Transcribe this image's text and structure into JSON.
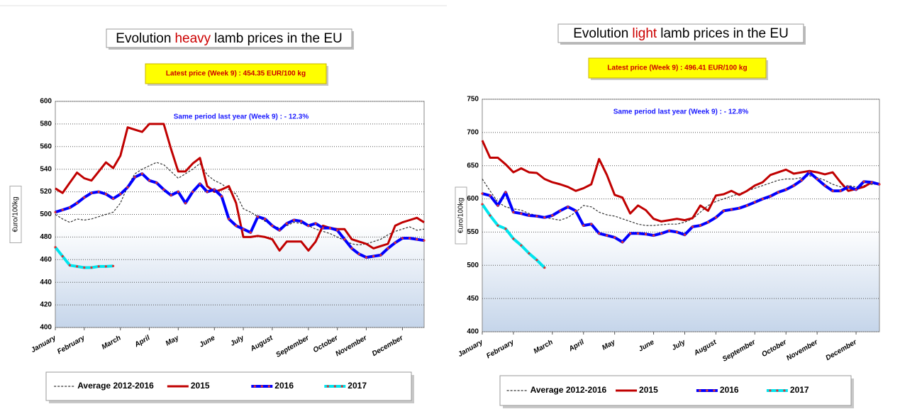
{
  "chart_data": [
    {
      "type": "line",
      "title": [
        "Evolution",
        "heavy",
        "lamb prices in the EU"
      ],
      "title_colors": [
        "#000000",
        "#cc0000",
        "#000000"
      ],
      "annotations": [
        "Latest price  (Week 9) : 454.35 EUR/100 kg",
        "Same period last year  (Week 9) : - 12.3%"
      ],
      "y_label": "€uro/100kg",
      "categories": [
        "January",
        null,
        null,
        null,
        "February",
        null,
        null,
        null,
        null,
        "March",
        null,
        null,
        null,
        "April",
        null,
        null,
        null,
        "May",
        null,
        null,
        null,
        null,
        "June",
        null,
        null,
        null,
        "July",
        null,
        null,
        null,
        "August",
        null,
        null,
        null,
        null,
        "September",
        null,
        null,
        null,
        "October",
        null,
        null,
        null,
        "November",
        null,
        null,
        null,
        null,
        "December",
        null,
        null,
        null
      ],
      "ylim": [
        400,
        600
      ],
      "yticks": [
        400,
        420,
        440,
        460,
        480,
        500,
        520,
        540,
        560,
        580,
        600
      ],
      "grid": true,
      "series": [
        {
          "name": "Average 2012-2016",
          "color": "#333333",
          "dash": true,
          "width": 1.2,
          "values": [
            500,
            496,
            493,
            496,
            495,
            496,
            498,
            500,
            502,
            510,
            525,
            536,
            540,
            543,
            546,
            544,
            538,
            532,
            536,
            540,
            545,
            535,
            530,
            527,
            522,
            518,
            505,
            502,
            498,
            494,
            490,
            488,
            490,
            493,
            492,
            490,
            487,
            485,
            483,
            480,
            477,
            474,
            473,
            474,
            476,
            478,
            482,
            485,
            487,
            489,
            486,
            487
          ]
        },
        {
          "name": "2015",
          "color": "#c00000",
          "width": 3,
          "values": [
            523,
            519,
            528,
            537,
            532,
            530,
            538,
            546,
            541,
            552,
            577,
            575,
            573,
            580,
            580,
            580,
            558,
            538,
            538,
            545,
            550,
            525,
            520,
            522,
            525,
            510,
            480,
            480,
            481,
            480,
            478,
            468,
            476,
            476,
            476,
            468,
            476,
            490,
            488,
            487,
            487,
            478,
            476,
            474,
            470,
            472,
            474,
            490,
            493,
            495,
            497,
            493
          ]
        },
        {
          "name": "2016",
          "color": "#0000ff",
          "width": 4,
          "marker_color": "#e03030",
          "values": [
            502,
            504,
            506,
            510,
            515,
            519,
            520,
            518,
            514,
            518,
            524,
            533,
            536,
            530,
            528,
            522,
            517,
            520,
            510,
            520,
            527,
            520,
            522,
            516,
            496,
            490,
            487,
            484,
            498,
            496,
            490,
            486,
            492,
            495,
            494,
            490,
            492,
            488,
            488,
            486,
            478,
            470,
            465,
            462,
            463,
            464,
            470,
            475,
            479,
            479,
            478,
            477
          ]
        },
        {
          "name": "2017",
          "color": "#00e5ee",
          "width": 4,
          "marker_color": "#e03030",
          "values": [
            471,
            463,
            455,
            454,
            453,
            453,
            454,
            454,
            454.35,
            null,
            null,
            null,
            null,
            null,
            null,
            null,
            null,
            null,
            null,
            null,
            null,
            null,
            null,
            null,
            null,
            null,
            null,
            null,
            null,
            null,
            null,
            null,
            null,
            null,
            null,
            null,
            null,
            null,
            null,
            null,
            null,
            null,
            null,
            null,
            null,
            null,
            null,
            null,
            null,
            null,
            null,
            null
          ]
        }
      ]
    },
    {
      "type": "line",
      "title": [
        "Evolution",
        "light",
        "lamb prices in the EU"
      ],
      "title_colors": [
        "#000000",
        "#cc0000",
        "#000000"
      ],
      "annotations": [
        "Latest price  (Week 9) : 496.41 EUR/100 kg",
        "Same period last year  (Week 9) : - 12.8%"
      ],
      "y_label": "€uro/100kg",
      "categories": [
        "January",
        null,
        null,
        null,
        "February",
        null,
        null,
        null,
        null,
        "March",
        null,
        null,
        null,
        "April",
        null,
        null,
        null,
        "May",
        null,
        null,
        null,
        null,
        "June",
        null,
        null,
        null,
        "July",
        null,
        null,
        null,
        "August",
        null,
        null,
        null,
        null,
        "September",
        null,
        null,
        null,
        "October",
        null,
        null,
        null,
        "November",
        null,
        null,
        null,
        null,
        "December",
        null,
        null,
        null
      ],
      "ylim": [
        400,
        750
      ],
      "yticks": [
        400,
        450,
        500,
        550,
        600,
        650,
        700,
        750
      ],
      "grid": true,
      "series": [
        {
          "name": "Average 2012-2016",
          "color": "#333333",
          "dash": true,
          "width": 1.2,
          "values": [
            630,
            612,
            595,
            588,
            585,
            583,
            578,
            575,
            572,
            570,
            568,
            572,
            580,
            590,
            588,
            580,
            576,
            574,
            570,
            566,
            562,
            560,
            560,
            561,
            562,
            562,
            565,
            570,
            580,
            590,
            596,
            600,
            604,
            608,
            612,
            616,
            620,
            624,
            628,
            630,
            630,
            632,
            635,
            632,
            628,
            622,
            618,
            620,
            618,
            620,
            622,
            622
          ]
        },
        {
          "name": "2015",
          "color": "#c00000",
          "width": 3,
          "values": [
            688,
            662,
            662,
            652,
            640,
            646,
            640,
            639,
            630,
            625,
            622,
            618,
            612,
            616,
            622,
            660,
            636,
            606,
            602,
            578,
            590,
            583,
            570,
            566,
            568,
            570,
            568,
            571,
            590,
            582,
            605,
            607,
            612,
            606,
            612,
            620,
            625,
            636,
            640,
            644,
            638,
            640,
            642,
            640,
            637,
            640,
            625,
            612,
            615,
            618,
            625,
            622
          ]
        },
        {
          "name": "2016",
          "color": "#0000ff",
          "width": 4,
          "marker_color": "#e03030",
          "values": [
            608,
            605,
            590,
            610,
            580,
            578,
            575,
            574,
            572,
            575,
            582,
            588,
            582,
            560,
            562,
            548,
            545,
            542,
            535,
            548,
            548,
            547,
            545,
            548,
            552,
            550,
            546,
            558,
            560,
            565,
            572,
            582,
            584,
            586,
            590,
            595,
            600,
            604,
            610,
            614,
            620,
            628,
            640,
            630,
            620,
            612,
            612,
            618,
            614,
            626,
            625,
            622
          ]
        },
        {
          "name": "2017",
          "color": "#00e5ee",
          "width": 4,
          "marker_color": "#e03030",
          "values": [
            592,
            575,
            560,
            555,
            540,
            530,
            518,
            508,
            496.41,
            null,
            null,
            null,
            null,
            null,
            null,
            null,
            null,
            null,
            null,
            null,
            null,
            null,
            null,
            null,
            null,
            null,
            null,
            null,
            null,
            null,
            null,
            null,
            null,
            null,
            null,
            null,
            null,
            null,
            null,
            null,
            null,
            null,
            null,
            null,
            null,
            null,
            null,
            null,
            null,
            null,
            null,
            null
          ]
        }
      ]
    }
  ]
}
